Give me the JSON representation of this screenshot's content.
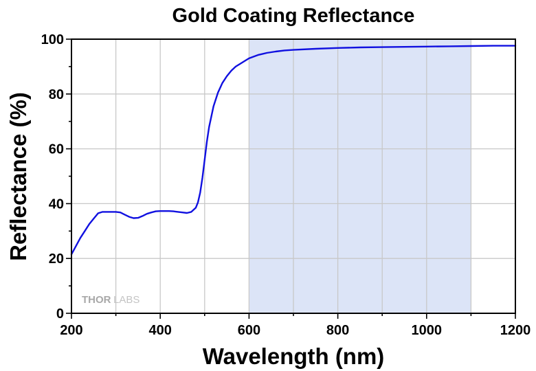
{
  "chart_data": {
    "type": "line",
    "title": "Gold Coating Reflectance",
    "xlabel": "Wavelength (nm)",
    "ylabel": "Reflectance (%)",
    "xlim": [
      200,
      1200
    ],
    "ylim": [
      0,
      100
    ],
    "x_major_ticks": [
      200,
      400,
      600,
      800,
      1000,
      1200
    ],
    "x_major_tick_labels": [
      "200",
      "400",
      "600",
      "800",
      "1000",
      "1200"
    ],
    "y_major_ticks": [
      0,
      20,
      40,
      60,
      80,
      100
    ],
    "y_major_tick_labels": [
      "0",
      "20",
      "40",
      "60",
      "80",
      "100"
    ],
    "x_gridlines": [
      300,
      400,
      500,
      600,
      700,
      800,
      900,
      1000,
      1100
    ],
    "y_gridlines": [
      20,
      40,
      60,
      80
    ],
    "grid": true,
    "shaded_region": {
      "x_range": [
        600,
        1100
      ],
      "color": "#dce4f7"
    },
    "series": [
      {
        "name": "Reflectance",
        "color": "#1010e0",
        "x": [
          200,
          210,
          220,
          230,
          240,
          250,
          260,
          270,
          280,
          290,
          300,
          310,
          320,
          330,
          340,
          350,
          360,
          370,
          380,
          390,
          400,
          410,
          420,
          430,
          440,
          450,
          460,
          470,
          480,
          485,
          490,
          495,
          500,
          505,
          510,
          520,
          530,
          540,
          550,
          560,
          570,
          580,
          590,
          600,
          620,
          640,
          660,
          680,
          700,
          750,
          800,
          850,
          900,
          950,
          1000,
          1050,
          1100,
          1150,
          1200
        ],
        "y": [
          21.5,
          24.5,
          27.5,
          30,
          32.5,
          34.5,
          36.5,
          37,
          37,
          37,
          37,
          36.8,
          36,
          35.2,
          34.7,
          34.8,
          35.5,
          36.3,
          36.8,
          37.2,
          37.3,
          37.3,
          37.3,
          37.2,
          37,
          36.8,
          36.6,
          37,
          38.5,
          40.5,
          44,
          49.5,
          56,
          62.5,
          68,
          75.5,
          80.5,
          84,
          86.5,
          88.5,
          90,
          91,
          92,
          93,
          94.2,
          95,
          95.5,
          95.9,
          96.1,
          96.5,
          96.8,
          97,
          97.1,
          97.2,
          97.3,
          97.4,
          97.5,
          97.6,
          97.6
        ]
      }
    ],
    "watermark": {
      "text_dark": "THOR",
      "text_light": "LABS"
    }
  }
}
